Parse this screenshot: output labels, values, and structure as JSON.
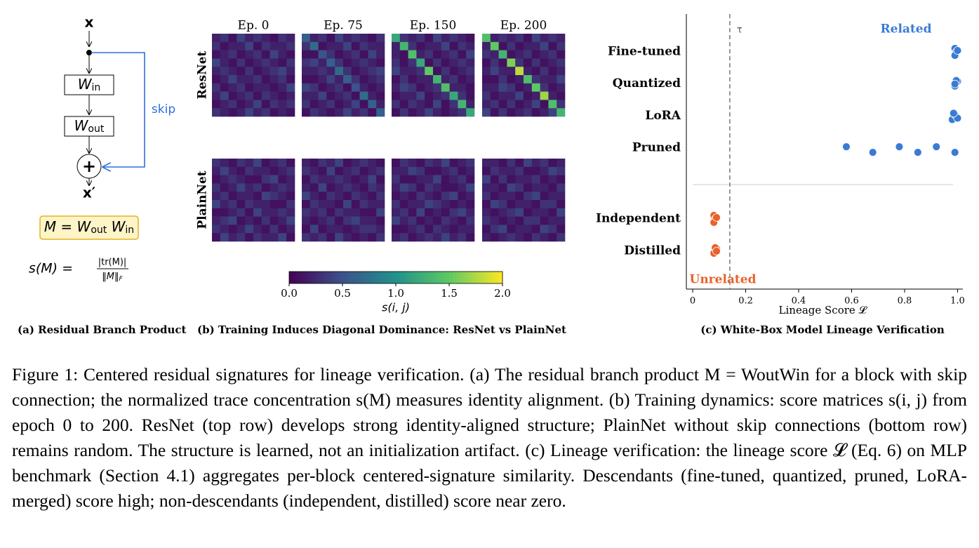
{
  "panel_a": {
    "input": "x",
    "w_in": {
      "base": "W",
      "sub": "in"
    },
    "w_out": {
      "base": "W",
      "sub": "out"
    },
    "plus": "+",
    "output": "x′",
    "skip": "skip",
    "product": [
      {
        "t": "M = W"
      },
      {
        "sub": "out"
      },
      {
        "t": " W"
      },
      {
        "sub": "in"
      }
    ],
    "score": {
      "lhs": "s(M) =",
      "num": "|tr(M)|",
      "den": "‖M‖",
      "den_sub": "F"
    },
    "caption": "(a) Residual Branch Product"
  },
  "panel_b": {
    "type": "heatmap",
    "columns": [
      "Ep. 0",
      "Ep. 75",
      "Ep. 150",
      "Ep. 200"
    ],
    "rows": [
      "ResNet",
      "PlainNet"
    ],
    "matrices": [
      [
        [
          [
            0.2,
            0.3,
            0.1,
            0.4,
            0.2,
            0.3,
            0.2,
            0.1,
            0.3,
            0.2
          ],
          [
            0.3,
            0.1,
            0.2,
            0.2,
            0.4,
            0.1,
            0.3,
            0.2,
            0.2,
            0.3
          ],
          [
            0.1,
            0.2,
            0.3,
            0.1,
            0.2,
            0.3,
            0.1,
            0.4,
            0.2,
            0.1
          ],
          [
            0.4,
            0.2,
            0.1,
            0.3,
            0.1,
            0.2,
            0.3,
            0.2,
            0.1,
            0.3
          ],
          [
            0.2,
            0.3,
            0.2,
            0.1,
            0.3,
            0.1,
            0.2,
            0.3,
            0.4,
            0.2
          ],
          [
            0.1,
            0.2,
            0.4,
            0.2,
            0.2,
            0.3,
            0.1,
            0.2,
            0.3,
            0.1
          ],
          [
            0.3,
            0.1,
            0.2,
            0.3,
            0.1,
            0.2,
            0.2,
            0.1,
            0.2,
            0.4
          ],
          [
            0.2,
            0.4,
            0.1,
            0.2,
            0.3,
            0.1,
            0.3,
            0.2,
            0.1,
            0.2
          ],
          [
            0.1,
            0.2,
            0.3,
            0.1,
            0.2,
            0.4,
            0.1,
            0.3,
            0.2,
            0.3
          ],
          [
            0.3,
            0.2,
            0.1,
            0.2,
            0.4,
            0.2,
            0.3,
            0.1,
            0.2,
            0.1
          ]
        ],
        [
          [
            0.6,
            0.2,
            0.3,
            0.1,
            0.4,
            0.2,
            0.3,
            0.2,
            0.1,
            0.3
          ],
          [
            0.3,
            0.7,
            0.1,
            0.2,
            0.2,
            0.4,
            0.1,
            0.3,
            0.2,
            0.2
          ],
          [
            0.1,
            0.1,
            0.5,
            0.3,
            0.1,
            0.2,
            0.3,
            0.1,
            0.4,
            0.2
          ],
          [
            0.3,
            0.4,
            0.2,
            0.6,
            0.3,
            0.1,
            0.2,
            0.3,
            0.2,
            0.1
          ],
          [
            0.2,
            0.2,
            0.3,
            0.2,
            0.7,
            0.3,
            0.1,
            0.2,
            0.3,
            0.4
          ],
          [
            0.1,
            0.1,
            0.2,
            0.4,
            0.2,
            0.6,
            0.3,
            0.1,
            0.2,
            0.3
          ],
          [
            0.4,
            0.3,
            0.1,
            0.2,
            0.3,
            0.1,
            0.5,
            0.2,
            0.1,
            0.2
          ],
          [
            0.2,
            0.2,
            0.4,
            0.1,
            0.2,
            0.3,
            0.1,
            0.7,
            0.2,
            0.1
          ],
          [
            0.3,
            0.1,
            0.2,
            0.3,
            0.1,
            0.2,
            0.4,
            0.1,
            0.6,
            0.2
          ],
          [
            0.1,
            0.3,
            0.2,
            0.1,
            0.2,
            0.4,
            0.2,
            0.3,
            0.1,
            0.6
          ]
        ],
        [
          [
            1.2,
            0.3,
            0.2,
            0.3,
            0.1,
            0.4,
            0.2,
            0.3,
            0.2,
            0.1
          ],
          [
            0.2,
            1.3,
            0.3,
            0.1,
            0.2,
            0.2,
            0.4,
            0.1,
            0.3,
            0.2
          ],
          [
            0.2,
            0.1,
            1.4,
            0.2,
            0.3,
            0.1,
            0.2,
            0.3,
            0.1,
            0.4
          ],
          [
            0.3,
            0.1,
            0.3,
            1.2,
            0.1,
            0.3,
            0.1,
            0.2,
            0.3,
            0.2
          ],
          [
            0.4,
            0.2,
            0.2,
            0.3,
            1.5,
            0.1,
            0.3,
            0.1,
            0.2,
            0.3
          ],
          [
            0.1,
            0.3,
            0.1,
            0.2,
            0.2,
            1.3,
            0.2,
            0.3,
            0.1,
            0.2
          ],
          [
            0.2,
            0.4,
            0.3,
            0.1,
            0.2,
            0.3,
            1.4,
            0.2,
            0.2,
            0.1
          ],
          [
            0.1,
            0.2,
            0.2,
            0.4,
            0.1,
            0.2,
            0.3,
            1.2,
            0.3,
            0.1
          ],
          [
            0.3,
            0.1,
            0.3,
            0.2,
            0.1,
            0.4,
            0.1,
            0.3,
            1.3,
            0.2
          ],
          [
            0.1,
            0.3,
            0.1,
            0.2,
            0.4,
            0.2,
            0.1,
            0.2,
            0.3,
            1.2
          ]
        ],
        [
          [
            1.4,
            0.2,
            0.3,
            0.2,
            0.3,
            0.1,
            0.4,
            0.2,
            0.3,
            0.2
          ],
          [
            0.2,
            1.5,
            0.1,
            0.3,
            0.1,
            0.2,
            0.2,
            0.4,
            0.1,
            0.3
          ],
          [
            0.3,
            0.2,
            1.3,
            0.1,
            0.2,
            0.3,
            0.1,
            0.2,
            0.3,
            0.1
          ],
          [
            0.1,
            0.3,
            0.1,
            1.6,
            0.3,
            0.1,
            0.3,
            0.1,
            0.2,
            0.3
          ],
          [
            0.2,
            0.4,
            0.2,
            0.2,
            1.8,
            0.2,
            0.1,
            0.3,
            0.1,
            0.2
          ],
          [
            0.1,
            0.1,
            0.3,
            0.1,
            0.2,
            1.4,
            0.3,
            0.2,
            0.2,
            0.4
          ],
          [
            0.2,
            0.2,
            0.4,
            0.3,
            0.1,
            0.2,
            1.5,
            0.3,
            0.1,
            0.2
          ],
          [
            0.3,
            0.1,
            0.2,
            0.2,
            0.4,
            0.1,
            0.2,
            1.7,
            0.2,
            0.1
          ],
          [
            0.2,
            0.3,
            0.1,
            0.3,
            0.1,
            0.2,
            0.4,
            0.1,
            1.4,
            0.3
          ],
          [
            0.4,
            0.1,
            0.3,
            0.1,
            0.2,
            0.3,
            0.1,
            0.2,
            0.4,
            1.3
          ]
        ]
      ],
      [
        [
          [
            0.3,
            0.2,
            0.1,
            0.3,
            0.2,
            0.4,
            0.1,
            0.2,
            0.3,
            0.1
          ],
          [
            0.2,
            0.4,
            0.2,
            0.1,
            0.3,
            0.2,
            0.2,
            0.1,
            0.2,
            0.3
          ],
          [
            0.1,
            0.2,
            0.3,
            0.2,
            0.1,
            0.1,
            0.3,
            0.4,
            0.1,
            0.2
          ],
          [
            0.3,
            0.1,
            0.2,
            0.4,
            0.2,
            0.3,
            0.1,
            0.2,
            0.3,
            0.2
          ],
          [
            0.2,
            0.3,
            0.1,
            0.2,
            0.2,
            0.1,
            0.4,
            0.3,
            0.2,
            0.1
          ],
          [
            0.4,
            0.2,
            0.3,
            0.1,
            0.3,
            0.2,
            0.2,
            0.1,
            0.1,
            0.3
          ],
          [
            0.1,
            0.1,
            0.2,
            0.3,
            0.1,
            0.4,
            0.2,
            0.2,
            0.3,
            0.2
          ],
          [
            0.2,
            0.3,
            0.4,
            0.1,
            0.2,
            0.1,
            0.3,
            0.1,
            0.2,
            0.4
          ],
          [
            0.3,
            0.2,
            0.1,
            0.2,
            0.4,
            0.2,
            0.1,
            0.3,
            0.1,
            0.2
          ],
          [
            0.1,
            0.4,
            0.2,
            0.3,
            0.1,
            0.3,
            0.2,
            0.2,
            0.4,
            0.1
          ]
        ],
        [
          [
            0.2,
            0.1,
            0.3,
            0.2,
            0.4,
            0.1,
            0.2,
            0.3,
            0.2,
            0.1
          ],
          [
            0.3,
            0.2,
            0.1,
            0.4,
            0.1,
            0.2,
            0.3,
            0.1,
            0.2,
            0.3
          ],
          [
            0.1,
            0.3,
            0.2,
            0.2,
            0.3,
            0.2,
            0.1,
            0.2,
            0.4,
            0.1
          ],
          [
            0.2,
            0.1,
            0.4,
            0.1,
            0.2,
            0.3,
            0.2,
            0.1,
            0.3,
            0.2
          ],
          [
            0.4,
            0.2,
            0.1,
            0.3,
            0.2,
            0.1,
            0.3,
            0.2,
            0.1,
            0.3
          ],
          [
            0.1,
            0.3,
            0.2,
            0.2,
            0.1,
            0.4,
            0.1,
            0.3,
            0.2,
            0.2
          ],
          [
            0.3,
            0.2,
            0.3,
            0.1,
            0.3,
            0.2,
            0.2,
            0.1,
            0.1,
            0.4
          ],
          [
            0.2,
            0.1,
            0.2,
            0.3,
            0.1,
            0.3,
            0.4,
            0.2,
            0.2,
            0.1
          ],
          [
            0.1,
            0.4,
            0.1,
            0.2,
            0.2,
            0.1,
            0.2,
            0.3,
            0.3,
            0.2
          ],
          [
            0.3,
            0.2,
            0.3,
            0.1,
            0.4,
            0.2,
            0.1,
            0.2,
            0.1,
            0.3
          ]
        ],
        [
          [
            0.1,
            0.3,
            0.2,
            0.1,
            0.3,
            0.2,
            0.4,
            0.1,
            0.2,
            0.3
          ],
          [
            0.2,
            0.2,
            0.4,
            0.3,
            0.1,
            0.1,
            0.2,
            0.3,
            0.1,
            0.2
          ],
          [
            0.3,
            0.1,
            0.1,
            0.2,
            0.2,
            0.4,
            0.1,
            0.2,
            0.3,
            0.1
          ],
          [
            0.2,
            0.4,
            0.3,
            0.1,
            0.3,
            0.2,
            0.1,
            0.1,
            0.2,
            0.4
          ],
          [
            0.1,
            0.2,
            0.1,
            0.3,
            0.2,
            0.1,
            0.3,
            0.4,
            0.1,
            0.2
          ],
          [
            0.3,
            0.1,
            0.2,
            0.2,
            0.4,
            0.3,
            0.2,
            0.1,
            0.2,
            0.1
          ],
          [
            0.2,
            0.3,
            0.1,
            0.4,
            0.1,
            0.2,
            0.1,
            0.3,
            0.4,
            0.2
          ],
          [
            0.4,
            0.2,
            0.3,
            0.1,
            0.2,
            0.1,
            0.3,
            0.2,
            0.1,
            0.3
          ],
          [
            0.1,
            0.1,
            0.2,
            0.3,
            0.1,
            0.3,
            0.2,
            0.1,
            0.2,
            0.2
          ],
          [
            0.2,
            0.3,
            0.1,
            0.2,
            0.3,
            0.2,
            0.4,
            0.2,
            0.3,
            0.1
          ]
        ],
        [
          [
            0.2,
            0.2,
            0.1,
            0.3,
            0.1,
            0.4,
            0.2,
            0.3,
            0.1,
            0.2
          ],
          [
            0.1,
            0.3,
            0.2,
            0.2,
            0.3,
            0.1,
            0.1,
            0.2,
            0.4,
            0.3
          ],
          [
            0.4,
            0.1,
            0.3,
            0.1,
            0.2,
            0.2,
            0.3,
            0.1,
            0.2,
            0.1
          ],
          [
            0.2,
            0.2,
            0.1,
            0.4,
            0.3,
            0.1,
            0.2,
            0.2,
            0.1,
            0.3
          ],
          [
            0.3,
            0.1,
            0.2,
            0.2,
            0.1,
            0.3,
            0.4,
            0.1,
            0.2,
            0.2
          ],
          [
            0.1,
            0.4,
            0.3,
            0.1,
            0.2,
            0.2,
            0.1,
            0.3,
            0.3,
            0.1
          ],
          [
            0.2,
            0.1,
            0.2,
            0.3,
            0.4,
            0.1,
            0.2,
            0.2,
            0.1,
            0.4
          ],
          [
            0.3,
            0.2,
            0.1,
            0.2,
            0.1,
            0.3,
            0.3,
            0.1,
            0.2,
            0.2
          ],
          [
            0.1,
            0.3,
            0.4,
            0.1,
            0.2,
            0.2,
            0.1,
            0.4,
            0.3,
            0.1
          ],
          [
            0.2,
            0.1,
            0.2,
            0.3,
            0.2,
            0.1,
            0.3,
            0.2,
            0.1,
            0.3
          ]
        ]
      ]
    ],
    "colorbar": {
      "label": "s(i, j)",
      "lim": [
        0,
        2
      ],
      "ticks": [
        {
          "value": 0,
          "label": "0.0"
        },
        0.5,
        {
          "value": 1,
          "label": "1.0"
        },
        1.5,
        {
          "value": 2,
          "label": "2.0"
        }
      ]
    },
    "caption": "(b) Training Induces Diagonal Dominance: ResNet vs PlainNet"
  },
  "chart_data": {
    "type": "scatter",
    "caption": "(c) White-Box Model Lineage Verification",
    "xlabel": "Lineage Score 𝓛",
    "categories": [
      "Fine-tuned",
      "Quantized",
      "LoRA",
      "Pruned",
      "Independent",
      "Distilled"
    ],
    "xlim": [
      -0.024,
      1.02
    ],
    "xticks": [
      0,
      0.2,
      0.4,
      0.6,
      0.8,
      {
        "value": 1,
        "label": "1.0"
      }
    ],
    "threshold": {
      "value": 0.14,
      "label": "τ"
    },
    "series": [
      {
        "name": "Related",
        "color": "#3a7bd5",
        "x": [
          0.99,
          0.995,
          0.99,
          1.0,
          0.99,
          1.0,
          0.995,
          0.99,
          0.98,
          0.99,
          1.0,
          0.985,
          0.58,
          0.68,
          0.78,
          0.85,
          0.92,
          0.99
        ],
        "y": [
          "Fine-tuned",
          "Fine-tuned",
          "Fine-tuned",
          "Fine-tuned",
          "Quantized",
          "Quantized",
          "Quantized",
          "Quantized",
          "LoRA",
          "LoRA",
          "LoRA",
          "LoRA",
          "Pruned",
          "Pruned",
          "Pruned",
          "Pruned",
          "Pruned",
          "Pruned"
        ]
      },
      {
        "name": "Unrelated",
        "color": "#e8622a",
        "x": [
          0.08,
          0.085,
          0.08,
          0.09,
          0.08,
          0.09,
          0.085,
          0.09
        ],
        "y": [
          "Independent",
          "Independent",
          "Independent",
          "Independent",
          "Distilled",
          "Distilled",
          "Distilled",
          "Distilled"
        ]
      }
    ]
  },
  "caption": "Figure 1: Centered residual signatures for lineage verification. (a) The residual branch product M = WoutWin for a block with skip connection; the normalized trace concentration s(M) measures identity alignment. (b) Training dynamics: score matrices s(i, j) from epoch 0 to 200. ResNet (top row) develops strong identity-aligned structure; PlainNet without skip connections (bottom row) remains random. The structure is learned, not an initialization artifact. (c) Lineage verification: the lineage score 𝓛 (Eq. 6) on MLP benchmark (Section 4.1) aggregates per-block centered-signature similarity. Descendants (fine-tuned, quantized, pruned, LoRA-merged) score high; non-descendants (independent, distilled) score near zero."
}
